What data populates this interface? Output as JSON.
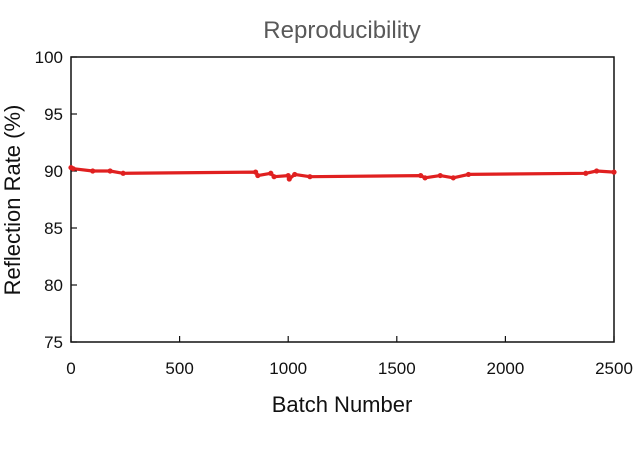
{
  "chart_data": {
    "type": "line",
    "title": "Reproducibility",
    "xlabel": "Batch Number",
    "ylabel": "Reflection Rate (%)",
    "xlim": [
      0,
      2500
    ],
    "ylim": [
      75,
      100
    ],
    "x_ticks": [
      0,
      500,
      1000,
      1500,
      2000,
      2500
    ],
    "y_ticks": [
      75,
      80,
      85,
      90,
      95,
      100
    ],
    "grid": false,
    "line_color": "#e02020",
    "series": [
      {
        "x": [
          0,
          10,
          100,
          180,
          240,
          850,
          860,
          920,
          935,
          1000,
          1005,
          1030,
          1100,
          1610,
          1630,
          1700,
          1760,
          1830,
          2370,
          2420,
          2500
        ],
        "y": [
          90.3,
          90.2,
          90.0,
          90.0,
          89.8,
          89.9,
          89.6,
          89.8,
          89.5,
          89.6,
          89.3,
          89.7,
          89.5,
          89.6,
          89.4,
          89.6,
          89.4,
          89.7,
          89.8,
          90.0,
          89.9
        ]
      }
    ]
  }
}
